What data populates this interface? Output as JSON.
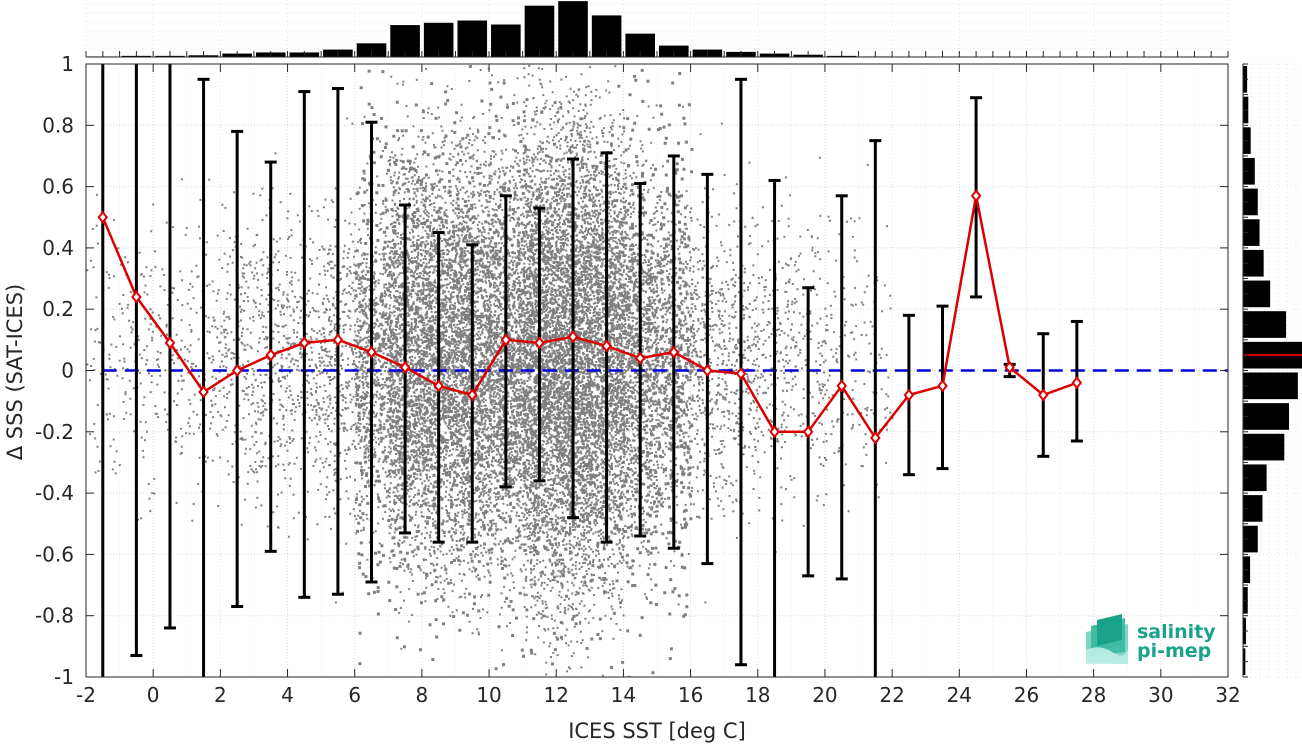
{
  "chart_data": {
    "type": "scatter",
    "xlabel": "ICES SST [deg C]",
    "ylabel": "Δ SSS (SAT-ICES)",
    "xlim": [
      -2,
      32
    ],
    "ylim": [
      -1,
      1
    ],
    "x_ticks": [
      "-2",
      "0",
      "2",
      "4",
      "6",
      "8",
      "10",
      "12",
      "14",
      "16",
      "18",
      "20",
      "22",
      "24",
      "26",
      "28",
      "30",
      "32"
    ],
    "y_ticks": [
      "1",
      "0.8",
      "0.6",
      "0.4",
      "0.2",
      "0",
      "-0.2",
      "-0.4",
      "-0.6",
      "-0.8",
      "-1"
    ],
    "grid": true,
    "reference_line": {
      "y": 0,
      "color": "#0000dd",
      "style": "dashed"
    },
    "binned_mean": {
      "color": "#dd0000",
      "x": [
        -1.5,
        -0.5,
        0.5,
        1.5,
        2.5,
        3.5,
        4.5,
        5.5,
        6.5,
        7.5,
        8.5,
        9.5,
        10.5,
        11.5,
        12.5,
        13.5,
        14.5,
        15.5,
        16.5,
        17.5,
        18.5,
        19.5,
        20.5,
        21.5,
        22.5,
        23.5,
        24.5,
        25.5,
        26.5,
        27.5
      ],
      "mean": [
        0.5,
        0.24,
        0.09,
        -0.07,
        0.0,
        0.05,
        0.09,
        0.1,
        0.06,
        0.01,
        -0.05,
        -0.08,
        0.1,
        0.09,
        0.11,
        0.08,
        0.04,
        0.06,
        0.0,
        -0.01,
        -0.2,
        -0.2,
        -0.05,
        -0.22,
        -0.08,
        -0.05,
        0.57,
        0.01,
        -0.08,
        -0.04
      ],
      "lower": [
        -1.2,
        -0.93,
        -0.84,
        -1.2,
        -0.77,
        -0.59,
        -0.74,
        -0.73,
        -0.69,
        -0.53,
        -0.56,
        -0.56,
        -0.38,
        -0.36,
        -0.48,
        -0.56,
        -0.54,
        -0.58,
        -0.63,
        -0.96,
        -1.2,
        -0.67,
        -0.68,
        -1.2,
        -0.34,
        -0.32,
        0.24,
        -0.02,
        -0.28,
        -0.23
      ],
      "upper": [
        1.2,
        1.2,
        1.2,
        0.95,
        0.78,
        0.68,
        0.91,
        0.92,
        0.81,
        0.54,
        0.45,
        0.41,
        0.57,
        0.53,
        0.69,
        0.71,
        0.61,
        0.7,
        0.64,
        0.95,
        0.62,
        0.27,
        0.57,
        0.75,
        0.18,
        0.21,
        0.89,
        0.02,
        0.12,
        0.16
      ]
    },
    "sst_histogram": {
      "bin_width": 1,
      "centers": [
        -1.5,
        -0.5,
        0.5,
        1.5,
        2.5,
        3.5,
        4.5,
        5.5,
        6.5,
        7.5,
        8.5,
        9.5,
        10.5,
        11.5,
        12.5,
        13.5,
        14.5,
        15.5,
        16.5,
        17.5,
        18.5,
        19.5,
        20.5,
        21.5
      ],
      "relative_counts": [
        0.01,
        0.02,
        0.02,
        0.03,
        0.06,
        0.08,
        0.08,
        0.13,
        0.24,
        0.56,
        0.6,
        0.64,
        0.57,
        0.9,
        0.98,
        0.73,
        0.41,
        0.2,
        0.13,
        0.09,
        0.06,
        0.04,
        0.02,
        0.01
      ]
    },
    "dsss_histogram": {
      "bin_width": 0.1,
      "centers": [
        -0.95,
        -0.85,
        -0.75,
        -0.65,
        -0.55,
        -0.45,
        -0.35,
        -0.25,
        -0.15,
        -0.05,
        0.05,
        0.15,
        0.25,
        0.35,
        0.45,
        0.55,
        0.65,
        0.75,
        0.85,
        0.95
      ],
      "relative_counts": [
        0.04,
        0.05,
        0.08,
        0.12,
        0.25,
        0.33,
        0.4,
        0.7,
        0.78,
        0.93,
        1.0,
        0.73,
        0.46,
        0.35,
        0.28,
        0.25,
        0.2,
        0.13,
        0.09,
        0.07
      ],
      "mean_marker": {
        "value": 0.05,
        "color": "#dd0000"
      }
    },
    "scatter_color": "#7f7f7f"
  },
  "logo": {
    "line1": "salinity",
    "line2": "pi-mep",
    "color": "#1aa38a"
  }
}
